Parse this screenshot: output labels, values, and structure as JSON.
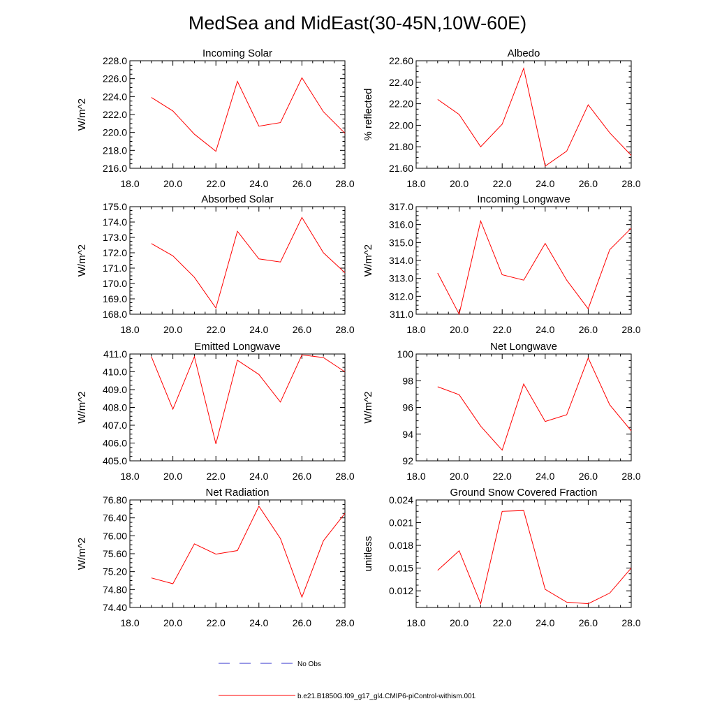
{
  "figure_title": "MedSea and MidEast(30-45N,10W-60E)",
  "legend": [
    {
      "label": "No Obs",
      "color": "#3333cc",
      "style": "dashed"
    },
    {
      "label": "b.e21.B1850G.f09_g17_gl4.CMIP6-piControl-withism.001",
      "color": "#ff0000",
      "style": "solid"
    }
  ],
  "chart_data": [
    {
      "type": "line",
      "title": "Incoming Solar",
      "ylabel": "W/m^2",
      "xlim": [
        18,
        28
      ],
      "ylim": [
        216,
        228
      ],
      "xticks": [
        "18.0",
        "20.0",
        "22.0",
        "24.0",
        "26.0",
        "28.0"
      ],
      "yticks": [
        "216.0",
        "218.0",
        "220.0",
        "222.0",
        "224.0",
        "226.0",
        "228.0"
      ],
      "x": [
        19,
        20,
        21,
        22,
        23,
        24,
        25,
        26,
        27,
        28
      ],
      "series": [
        {
          "name": "b.e21.B1850G.f09_g17_gl4.CMIP6-piControl-withism.001",
          "values": [
            223.9,
            222.4,
            219.8,
            217.9,
            225.7,
            220.7,
            221.1,
            226.1,
            222.3,
            219.9
          ]
        }
      ]
    },
    {
      "type": "line",
      "title": "Albedo",
      "ylabel": "% reflected",
      "xlim": [
        18,
        28
      ],
      "ylim": [
        21.6,
        22.6
      ],
      "xticks": [
        "18.0",
        "20.0",
        "22.0",
        "24.0",
        "26.0",
        "28.0"
      ],
      "yticks": [
        "21.60",
        "21.80",
        "22.00",
        "22.20",
        "22.40",
        "22.60"
      ],
      "x": [
        19,
        20,
        21,
        22,
        23,
        24,
        25,
        26,
        27,
        28
      ],
      "series": [
        {
          "name": "b.e21.B1850G.f09_g17_gl4.CMIP6-piControl-withism.001",
          "values": [
            22.24,
            22.1,
            21.8,
            22.01,
            22.53,
            21.62,
            21.76,
            22.19,
            21.93,
            21.72
          ]
        }
      ]
    },
    {
      "type": "line",
      "title": "Absorbed Solar",
      "ylabel": "W/m^2",
      "xlim": [
        18,
        28
      ],
      "ylim": [
        168,
        175
      ],
      "xticks": [
        "18.0",
        "20.0",
        "22.0",
        "24.0",
        "26.0",
        "28.0"
      ],
      "yticks": [
        "168.0",
        "169.0",
        "170.0",
        "171.0",
        "172.0",
        "173.0",
        "174.0",
        "175.0"
      ],
      "x": [
        19,
        20,
        21,
        22,
        23,
        24,
        25,
        26,
        27,
        28
      ],
      "series": [
        {
          "name": "b.e21.B1850G.f09_g17_gl4.CMIP6-piControl-withism.001",
          "values": [
            172.6,
            171.8,
            170.4,
            168.4,
            173.4,
            171.6,
            171.4,
            174.3,
            172.0,
            170.7
          ]
        }
      ]
    },
    {
      "type": "line",
      "title": "Incoming Longwave",
      "ylabel": "W/m^2",
      "xlim": [
        18,
        28
      ],
      "ylim": [
        311,
        317
      ],
      "xticks": [
        "18.0",
        "20.0",
        "22.0",
        "24.0",
        "26.0",
        "28.0"
      ],
      "yticks": [
        "311.0",
        "312.0",
        "313.0",
        "314.0",
        "315.0",
        "316.0",
        "317.0"
      ],
      "x": [
        19,
        20,
        21,
        22,
        23,
        24,
        25,
        26,
        27,
        28
      ],
      "series": [
        {
          "name": "b.e21.B1850G.f09_g17_gl4.CMIP6-piControl-withism.001",
          "values": [
            313.3,
            311.0,
            316.2,
            313.2,
            312.9,
            314.95,
            312.9,
            311.3,
            314.6,
            315.8
          ]
        }
      ]
    },
    {
      "type": "line",
      "title": "Emitted Longwave",
      "ylabel": "W/m^2",
      "xlim": [
        18,
        28
      ],
      "ylim": [
        405,
        411
      ],
      "xticks": [
        "18.0",
        "20.0",
        "22.0",
        "24.0",
        "26.0",
        "28.0"
      ],
      "yticks": [
        "405.0",
        "406.0",
        "407.0",
        "408.0",
        "409.0",
        "410.0",
        "411.0"
      ],
      "x": [
        19,
        20,
        21,
        22,
        23,
        24,
        25,
        26,
        27,
        28
      ],
      "series": [
        {
          "name": "b.e21.B1850G.f09_g17_gl4.CMIP6-piControl-withism.001",
          "values": [
            410.85,
            407.9,
            410.85,
            405.95,
            410.65,
            409.85,
            408.3,
            410.95,
            410.8,
            410.0
          ]
        }
      ]
    },
    {
      "type": "line",
      "title": "Net Longwave",
      "ylabel": "W/m^2",
      "xlim": [
        18,
        28
      ],
      "ylim": [
        92,
        100
      ],
      "xticks": [
        "18.0",
        "20.0",
        "22.0",
        "24.0",
        "26.0",
        "28.0"
      ],
      "yticks": [
        "92",
        "94",
        "96",
        "98",
        "100"
      ],
      "x": [
        19,
        20,
        21,
        22,
        23,
        24,
        25,
        26,
        27,
        28
      ],
      "series": [
        {
          "name": "b.e21.B1850G.f09_g17_gl4.CMIP6-piControl-withism.001",
          "values": [
            97.55,
            96.95,
            94.6,
            92.8,
            97.75,
            94.95,
            95.45,
            99.7,
            96.2,
            94.25
          ]
        }
      ]
    },
    {
      "type": "line",
      "title": "Net Radiation",
      "ylabel": "W/m^2",
      "xlim": [
        18,
        28
      ],
      "ylim": [
        74.4,
        76.8
      ],
      "xticks": [
        "18.0",
        "20.0",
        "22.0",
        "24.0",
        "26.0",
        "28.0"
      ],
      "yticks": [
        "74.40",
        "74.80",
        "75.20",
        "75.60",
        "76.00",
        "76.40",
        "76.80"
      ],
      "x": [
        19,
        20,
        21,
        22,
        23,
        24,
        25,
        26,
        27,
        28
      ],
      "series": [
        {
          "name": "b.e21.B1850G.f09_g17_gl4.CMIP6-piControl-withism.001",
          "values": [
            75.06,
            74.93,
            75.82,
            75.59,
            75.67,
            76.66,
            75.94,
            74.63,
            75.89,
            76.5
          ]
        }
      ]
    },
    {
      "type": "line",
      "title": "Ground Snow Covered Fraction",
      "ylabel": "unitless",
      "xlim": [
        18,
        28
      ],
      "ylim": [
        0.0098,
        0.024
      ],
      "xticks": [
        "18.0",
        "20.0",
        "22.0",
        "24.0",
        "26.0",
        "28.0"
      ],
      "yticks": [
        "0.012",
        "0.015",
        "0.018",
        "0.021",
        "0.024"
      ],
      "ytick_values": [
        0.012,
        0.015,
        0.018,
        0.021,
        0.024
      ],
      "x": [
        19,
        20,
        21,
        22,
        23,
        24,
        25,
        26,
        27,
        28
      ],
      "series": [
        {
          "name": "b.e21.B1850G.f09_g17_gl4.CMIP6-piControl-withism.001",
          "values": [
            0.0147,
            0.0173,
            0.0103,
            0.0225,
            0.0226,
            0.0122,
            0.0105,
            0.0103,
            0.0117,
            0.015
          ]
        }
      ]
    }
  ]
}
